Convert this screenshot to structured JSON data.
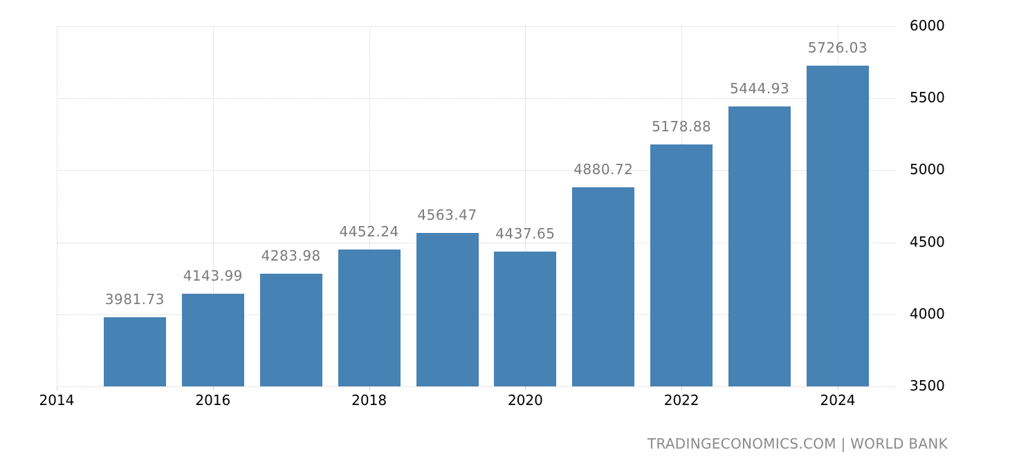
{
  "chart_data": {
    "type": "bar",
    "title": "",
    "xlabel": "",
    "ylabel": "",
    "categories": [
      "2015",
      "2016",
      "2017",
      "2018",
      "2019",
      "2020",
      "2021",
      "2022",
      "2023",
      "2024"
    ],
    "values": [
      3981.73,
      4143.99,
      4283.98,
      4452.24,
      4563.47,
      4437.65,
      4880.72,
      5178.88,
      5444.93,
      5726.03
    ],
    "value_labels": [
      "3981.73",
      "4143.99",
      "4283.98",
      "4452.24",
      "4563.47",
      "4437.65",
      "4880.72",
      "5178.88",
      "5444.93",
      "5726.03"
    ],
    "ylim": [
      3500,
      6000
    ],
    "y_ticks": [
      "6000",
      "5500",
      "5000",
      "4500",
      "4000",
      "3500"
    ],
    "y_axis_position": "right",
    "x_ticks": [
      "2014",
      "2016",
      "2018",
      "2020",
      "2022",
      "2024"
    ],
    "x_range": [
      2014,
      2024.75
    ],
    "grid": true,
    "bar_color": "#4682b4",
    "legend": null
  },
  "source": "TRADINGECONOMICS.COM | WORLD BANK"
}
